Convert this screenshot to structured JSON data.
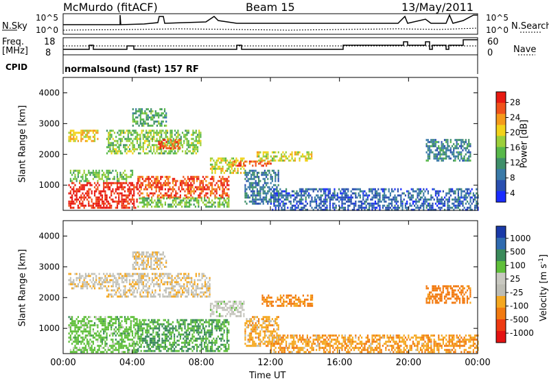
{
  "header": {
    "station": "McMurdo (fitACF)",
    "beam": "Beam 15",
    "date": "13/May/2011"
  },
  "status_panels": {
    "nsky_label": "N.Sky",
    "nsky_ticks": [
      "10^5",
      "10^0"
    ],
    "nsearch_label": "N.Search",
    "nsearch_ticks": [
      "10^5",
      "10^0"
    ],
    "freq_label": "Freq.",
    "freq_unit": "[MHz]",
    "freq_ticks": [
      "18",
      "8"
    ],
    "nave_label": "Nave",
    "nave_ticks": [
      "60",
      "0"
    ],
    "cpid_label": "CPID",
    "cpid_text": "normalsound (fast) 157 RF"
  },
  "colors": {
    "power": [
      "#1a2cff",
      "#2a4fb0",
      "#3a7aa8",
      "#3f8f6a",
      "#58b84a",
      "#9ccf3a",
      "#f2d21a",
      "#f59a1a",
      "#f0521a",
      "#e81a12"
    ],
    "velocity": [
      "#1a3aa8",
      "#2f6bb0",
      "#3a8a5a",
      "#5fbf3a",
      "#c8c8c0",
      "#bdbdb4",
      "#f5a820",
      "#f27a10",
      "#ee3a12",
      "#e41212"
    ],
    "ground_scatter": "#b4b4ae"
  },
  "chart_data": [
    {
      "type": "heatmap",
      "title": "Power",
      "xlabel": "Time UT",
      "ylabel": "Slant Range [km]",
      "x_tick_labels": [
        "00:00",
        "04:00",
        "08:00",
        "12:00",
        "16:00",
        "20:00",
        "00:00"
      ],
      "y_tick_labels": [
        "1000",
        "2000",
        "3000",
        "4000"
      ],
      "xlim_hours": [
        0,
        24
      ],
      "ylim_km": [
        180,
        4500
      ],
      "colorbar": {
        "label": "Power [dB]",
        "ticks": [
          "28",
          "24",
          "20",
          "16",
          "12",
          "8",
          "4"
        ],
        "range": [
          0,
          30
        ]
      },
      "regions": [
        {
          "t0": 0.3,
          "t1": 4.3,
          "r0": 250,
          "r1": 1100,
          "value": 28
        },
        {
          "t0": 4.3,
          "t1": 9.6,
          "r0": 600,
          "r1": 1300,
          "value": 26
        },
        {
          "t0": 4.3,
          "t1": 9.6,
          "r0": 300,
          "r1": 600,
          "value": 14
        },
        {
          "t0": 0.3,
          "t1": 4.0,
          "r0": 1100,
          "r1": 1500,
          "value": 14
        },
        {
          "t0": 0.3,
          "t1": 2.0,
          "r0": 2400,
          "r1": 2800,
          "value": 20
        },
        {
          "t0": 2.5,
          "t1": 8.0,
          "r0": 2000,
          "r1": 2800,
          "value": 15
        },
        {
          "t0": 5.5,
          "t1": 6.8,
          "r0": 2200,
          "r1": 2500,
          "value": 26
        },
        {
          "t0": 4.0,
          "t1": 6.0,
          "r0": 2900,
          "r1": 3500,
          "value": 12
        },
        {
          "t0": 8.5,
          "t1": 10.5,
          "r0": 1400,
          "r1": 1900,
          "value": 18
        },
        {
          "t0": 9.8,
          "t1": 12.0,
          "r0": 1600,
          "r1": 1800,
          "value": 26
        },
        {
          "t0": 11.2,
          "t1": 14.4,
          "r0": 1800,
          "r1": 2100,
          "value": 18
        },
        {
          "t0": 10.5,
          "t1": 12.5,
          "r0": 400,
          "r1": 1500,
          "value": 8
        },
        {
          "t0": 12.0,
          "t1": 24.0,
          "r0": 200,
          "r1": 900,
          "value": 6
        },
        {
          "t0": 21.0,
          "t1": 23.6,
          "r0": 1800,
          "r1": 2500,
          "value": 9
        }
      ]
    },
    {
      "type": "heatmap",
      "title": "Velocity",
      "xlabel": "Time UT",
      "ylabel": "Slant Range [km]",
      "x_tick_labels": [
        "00:00",
        "04:00",
        "08:00",
        "12:00",
        "16:00",
        "20:00",
        "00:00"
      ],
      "y_tick_labels": [
        "1000",
        "2000",
        "3000",
        "4000"
      ],
      "xlim_hours": [
        0,
        24
      ],
      "ylim_km": [
        180,
        4500
      ],
      "colorbar": {
        "label": "Velocity [m s^-1]",
        "ticks": [
          "1000",
          "500",
          "100",
          "25",
          "-25",
          "-100",
          "-500",
          "-1000"
        ]
      },
      "regions": [
        {
          "t0": 0.3,
          "t1": 4.3,
          "r0": 250,
          "r1": 1400,
          "value": 150
        },
        {
          "t0": 4.3,
          "t1": 9.6,
          "r0": 250,
          "r1": 1300,
          "value": 200
        },
        {
          "t0": 0.3,
          "t1": 2.5,
          "r0": 2300,
          "r1": 2800,
          "value": 0
        },
        {
          "t0": 2.5,
          "t1": 8.5,
          "r0": 2000,
          "r1": 2800,
          "value": 0
        },
        {
          "t0": 4.0,
          "t1": 6.0,
          "r0": 2900,
          "r1": 3500,
          "value": 0
        },
        {
          "t0": 8.5,
          "t1": 10.5,
          "r0": 1400,
          "r1": 1900,
          "value": 60
        },
        {
          "t0": 11.5,
          "t1": 14.4,
          "r0": 1700,
          "r1": 2100,
          "value": -120
        },
        {
          "t0": 10.5,
          "t1": 12.5,
          "r0": 400,
          "r1": 1400,
          "value": -60
        },
        {
          "t0": 12.0,
          "t1": 24.0,
          "r0": 200,
          "r1": 800,
          "value": -80
        },
        {
          "t0": 21.0,
          "t1": 23.6,
          "r0": 1800,
          "r1": 2400,
          "value": -150
        }
      ]
    }
  ]
}
